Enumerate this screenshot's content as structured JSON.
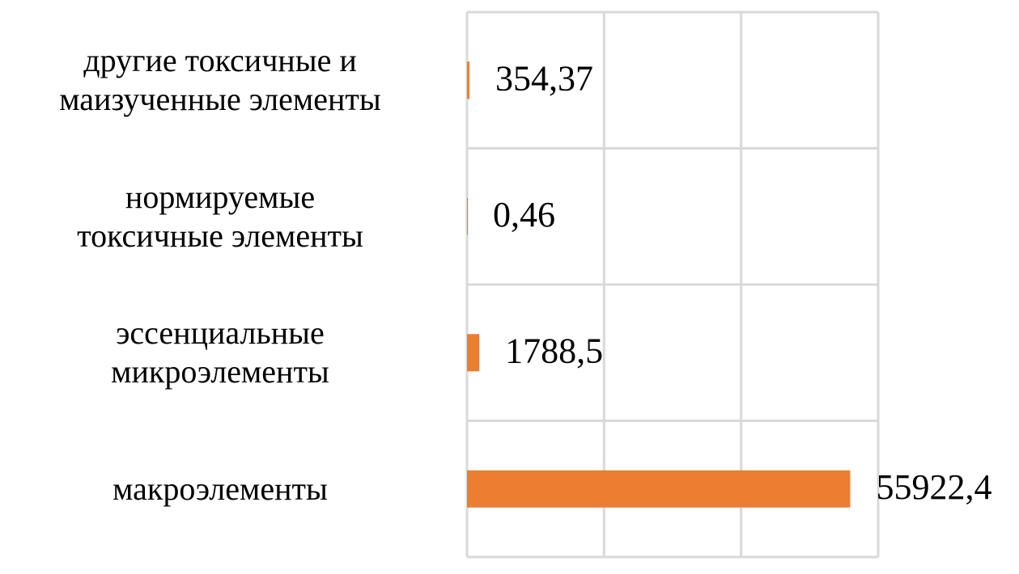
{
  "chart_data": {
    "type": "barh",
    "categories": [
      "другие токсичные и\nмаизученные элементы",
      "нормируемые\nтоксичные элементы",
      "эссенциальные\nмикроэлементы",
      "макроэлементы"
    ],
    "values": [
      354.37,
      0.46,
      1788.5,
      55922.4
    ],
    "value_labels": [
      "354,37",
      "0,46",
      "1788,5",
      "55922,4"
    ],
    "color": "#ed7d31",
    "xlim": [
      0,
      60000
    ],
    "xticks": [
      0,
      20000,
      40000,
      60000
    ],
    "grid": true
  }
}
